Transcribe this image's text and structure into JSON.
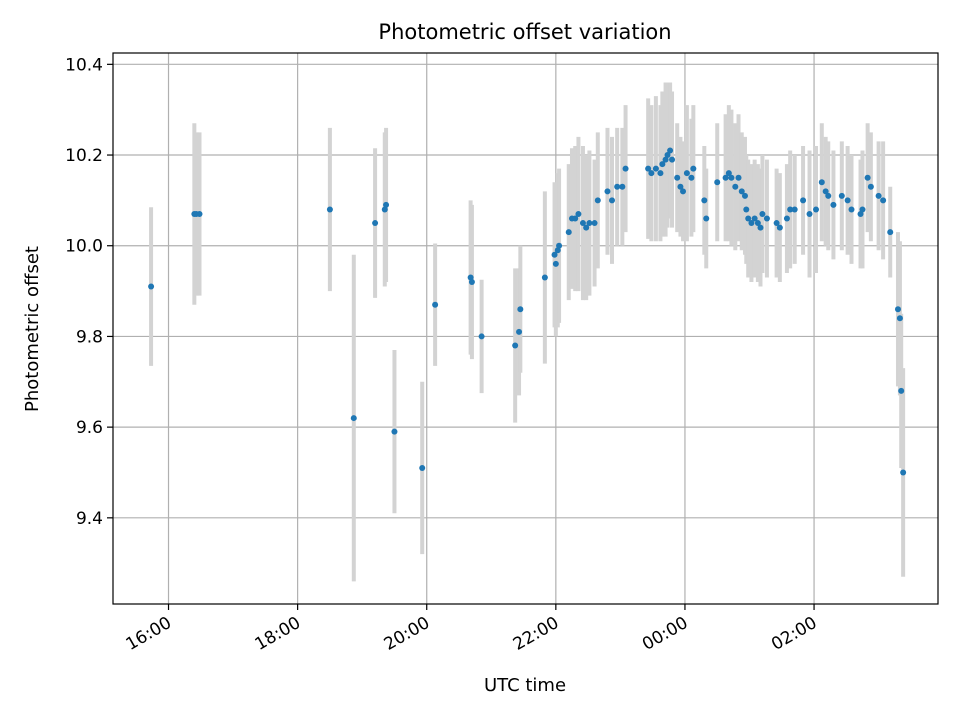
{
  "chart_data": {
    "type": "scatter",
    "title": "Photometric offset variation",
    "xlabel": "UTC time",
    "ylabel": "Photometric offset",
    "x_tick_labels": [
      "16:00",
      "18:00",
      "20:00",
      "22:00",
      "00:00",
      "02:00"
    ],
    "y_tick_labels": [
      "9.4",
      "9.6",
      "9.8",
      "10.0",
      "10.2",
      "10.4"
    ],
    "x_ticks_hours": [
      16,
      18,
      20,
      22,
      24,
      26
    ],
    "y_ticks": [
      9.4,
      9.6,
      9.8,
      10.0,
      10.2,
      10.4
    ],
    "xlim_hours": [
      15.14,
      27.92
    ],
    "ylim": [
      9.21,
      10.425
    ],
    "grid": true,
    "colors": {
      "point": "#1f77b4",
      "errorbar": "#d3d3d3",
      "grid": "#b0b0b0"
    },
    "series": [
      {
        "x_hours": [
          15.73,
          16.4,
          16.43,
          16.48,
          18.5,
          18.87,
          19.2,
          19.35,
          19.37,
          19.5,
          19.93,
          20.13,
          20.68,
          20.7,
          20.85,
          21.37,
          21.43,
          21.45,
          21.83,
          21.98,
          22.0,
          22.03,
          22.05,
          22.2,
          22.25,
          22.3,
          22.35,
          22.42,
          22.47,
          22.52,
          22.6,
          22.65,
          22.8,
          22.87,
          22.95,
          23.03,
          23.08,
          23.43,
          23.48,
          23.55,
          23.62,
          23.65,
          23.7,
          23.73,
          23.77,
          23.8,
          23.88,
          23.93,
          23.97,
          24.03,
          24.1,
          24.13,
          24.3,
          24.33,
          24.5,
          24.63,
          24.68,
          24.72,
          24.78,
          24.83,
          24.88,
          24.93,
          24.95,
          24.98,
          25.03,
          25.08,
          25.13,
          25.17,
          25.2,
          25.27,
          25.42,
          25.47,
          25.58,
          25.63,
          25.7,
          25.83,
          25.93,
          26.03,
          26.12,
          26.18,
          26.22,
          26.3,
          26.43,
          26.52,
          26.58,
          26.72,
          26.75,
          26.83,
          26.88,
          27.0,
          27.07,
          27.18,
          27.3,
          27.33,
          27.35,
          27.38
        ],
        "y": [
          9.91,
          10.07,
          10.07,
          10.07,
          10.08,
          9.62,
          10.05,
          10.08,
          10.09,
          9.59,
          9.51,
          9.87,
          9.93,
          9.92,
          9.8,
          9.78,
          9.81,
          9.86,
          9.93,
          9.98,
          9.96,
          9.99,
          10.0,
          10.03,
          10.06,
          10.06,
          10.07,
          10.05,
          10.04,
          10.05,
          10.05,
          10.1,
          10.12,
          10.1,
          10.13,
          10.13,
          10.17,
          10.17,
          10.16,
          10.17,
          10.16,
          10.18,
          10.19,
          10.2,
          10.21,
          10.19,
          10.15,
          10.13,
          10.12,
          10.16,
          10.15,
          10.17,
          10.1,
          10.06,
          10.14,
          10.15,
          10.16,
          10.15,
          10.13,
          10.15,
          10.12,
          10.11,
          10.08,
          10.06,
          10.05,
          10.06,
          10.05,
          10.04,
          10.07,
          10.06,
          10.05,
          10.04,
          10.06,
          10.08,
          10.08,
          10.1,
          10.07,
          10.08,
          10.14,
          10.12,
          10.11,
          10.09,
          10.11,
          10.1,
          10.08,
          10.07,
          10.08,
          10.15,
          10.13,
          10.11,
          10.1,
          10.03,
          9.86,
          9.84,
          9.68,
          9.5
        ],
        "err": [
          0.175,
          0.2,
          0.18,
          0.18,
          0.18,
          0.36,
          0.165,
          0.17,
          0.17,
          0.18,
          0.19,
          0.135,
          0.17,
          0.17,
          0.125,
          0.17,
          0.14,
          0.14,
          0.19,
          0.16,
          0.16,
          0.17,
          0.17,
          0.15,
          0.155,
          0.16,
          0.17,
          0.17,
          0.16,
          0.16,
          0.14,
          0.15,
          0.14,
          0.14,
          0.13,
          0.13,
          0.14,
          0.155,
          0.15,
          0.16,
          0.15,
          0.16,
          0.17,
          0.16,
          0.15,
          0.15,
          0.12,
          0.11,
          0.11,
          0.15,
          0.13,
          0.14,
          0.12,
          0.11,
          0.13,
          0.14,
          0.15,
          0.15,
          0.14,
          0.14,
          0.13,
          0.13,
          0.12,
          0.13,
          0.13,
          0.13,
          0.13,
          0.13,
          0.13,
          0.13,
          0.12,
          0.12,
          0.12,
          0.13,
          0.12,
          0.12,
          0.14,
          0.14,
          0.13,
          0.12,
          0.12,
          0.12,
          0.12,
          0.12,
          0.12,
          0.12,
          0.13,
          0.12,
          0.12,
          0.12,
          0.13,
          0.1,
          0.17,
          0.17,
          0.17,
          0.23
        ]
      }
    ]
  }
}
